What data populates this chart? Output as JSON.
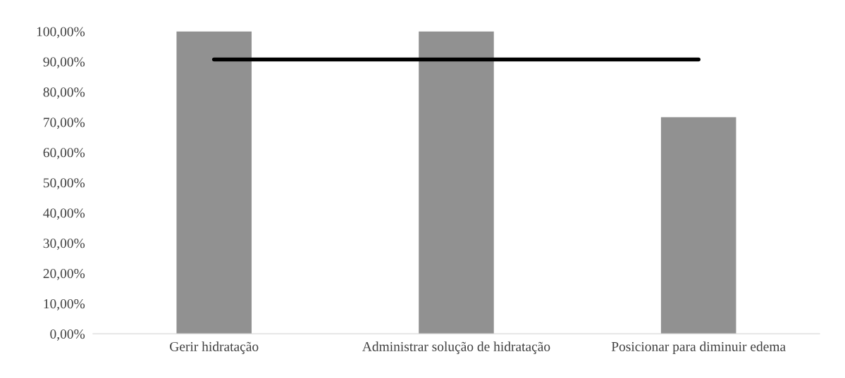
{
  "chart_data": {
    "type": "bar",
    "categories": [
      "Gerir hidratação",
      "Administrar solução de hidratação",
      "Posicionar para diminuir edema"
    ],
    "series": [
      {
        "color": "#919191",
        "values": [
          100,
          100,
          71.6
        ]
      },
      {
        "type": "line",
        "color": "#000000",
        "values": [
          90.7,
          90.7,
          90.7
        ]
      }
    ],
    "ylim": [
      0,
      100
    ],
    "yticks": [
      {
        "value": 0,
        "label": "0,00%"
      },
      {
        "value": 10,
        "label": "10,00%"
      },
      {
        "value": 20,
        "label": "20,00%"
      },
      {
        "value": 30,
        "label": "30,00%"
      },
      {
        "value": 40,
        "label": "40,00%"
      },
      {
        "value": 50,
        "label": "50,00%"
      },
      {
        "value": 60,
        "label": "60,00%"
      },
      {
        "value": 70,
        "label": "70,00%"
      },
      {
        "value": 80,
        "label": "80,00%"
      },
      {
        "value": 90,
        "label": "90,00%"
      },
      {
        "value": 100,
        "label": "100,00%"
      }
    ],
    "grid": false,
    "legend": false
  }
}
